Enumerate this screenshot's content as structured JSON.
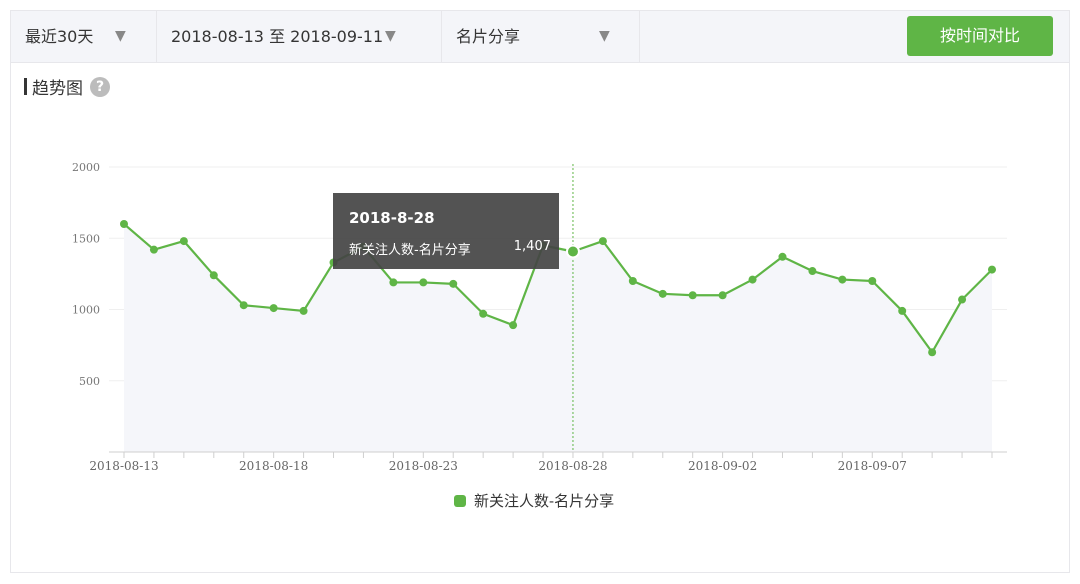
{
  "filters": {
    "range_label": "最近30天",
    "date_range": "2018-08-13 至 2018-09-11",
    "source_label": "名片分享",
    "compare_button": "按时间对比",
    "arrow_glyph": "▼"
  },
  "section": {
    "title": "趋势图",
    "help_glyph": "?"
  },
  "tooltip": {
    "date": "2018-8-28",
    "series": "新关注人数-名片分享",
    "value": "1,407"
  },
  "legend": {
    "label": "新关注人数-名片分享"
  },
  "colors": {
    "accent": "#5fb546",
    "tooltip_bg": "#444444"
  },
  "chart_data": {
    "type": "area",
    "title": "",
    "xlabel": "",
    "ylabel": "",
    "ylim": [
      0,
      2000
    ],
    "y_ticks": [
      500,
      1000,
      1500,
      2000
    ],
    "x_tick_labels": [
      "2018-08-13",
      "2018-08-18",
      "2018-08-23",
      "2018-08-28",
      "2018-09-02",
      "2018-09-07"
    ],
    "x": [
      "2018-08-13",
      "2018-08-14",
      "2018-08-15",
      "2018-08-16",
      "2018-08-17",
      "2018-08-18",
      "2018-08-19",
      "2018-08-20",
      "2018-08-21",
      "2018-08-22",
      "2018-08-23",
      "2018-08-24",
      "2018-08-25",
      "2018-08-26",
      "2018-08-27",
      "2018-08-28",
      "2018-08-29",
      "2018-08-30",
      "2018-08-31",
      "2018-09-01",
      "2018-09-02",
      "2018-09-03",
      "2018-09-04",
      "2018-09-05",
      "2018-09-06",
      "2018-09-07",
      "2018-09-08",
      "2018-09-09",
      "2018-09-10",
      "2018-09-11"
    ],
    "series": [
      {
        "name": "新关注人数-名片分享",
        "values": [
          1600,
          1420,
          1480,
          1240,
          1030,
          1010,
          990,
          1330,
          1440,
          1190,
          1190,
          1180,
          970,
          890,
          1450,
          1407,
          1480,
          1200,
          1110,
          1100,
          1100,
          1210,
          1370,
          1270,
          1210,
          1200,
          990,
          700,
          1070,
          1280
        ]
      }
    ],
    "highlight_index": 15,
    "grid": true,
    "legend_position": "bottom-center"
  }
}
